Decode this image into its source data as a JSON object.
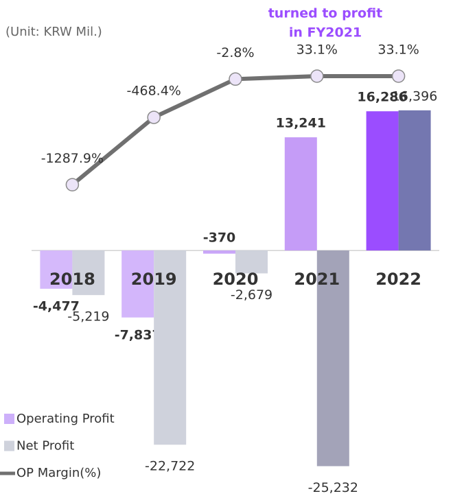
{
  "chart_data": {
    "type": "bar",
    "subtitle": "(Unit: KRW Mil.)",
    "annotation": [
      "turned to profit",
      "in FY2021"
    ],
    "categories": [
      "2018",
      "2019",
      "2020",
      "2021",
      "2022"
    ],
    "ylim": [
      -28000,
      22000
    ],
    "y2lim": [
      -5000,
      200
    ],
    "legend": "bottom-left",
    "series": [
      {
        "name": "Operating Profit",
        "color": "#cdb0fa",
        "colors": [
          "#d5b9fb",
          "#d3b6fb",
          "#c9a6f8",
          "#c59cf7",
          "#9b4dff"
        ],
        "values": [
          -4477,
          -7837,
          -370,
          13241,
          16286
        ],
        "value_labels": [
          "-4,477",
          "-7,837",
          "-370",
          "13,241",
          "16,286"
        ]
      },
      {
        "name": "Net Profit",
        "color": "#cfd2dc",
        "colors": [
          "#cfd2dc",
          "#cfd2dc",
          "#cfd2dc",
          "#a3a3b8",
          "#7477b0"
        ],
        "values": [
          -5219,
          -22722,
          -2679,
          -25232,
          16396
        ],
        "value_labels": [
          "-5,219",
          "-22,722",
          "-2,679",
          "-25,232",
          "16,396"
        ]
      },
      {
        "name": "OP Margin(%)",
        "type": "line",
        "axis": "y2",
        "color": "#707070",
        "values": [
          -1287.9,
          -468.4,
          -2.8,
          33.1,
          33.1
        ],
        "value_labels": [
          "-1287.9%",
          "-468.4%",
          "-2.8%",
          "33.1%",
          "33.1%"
        ]
      }
    ]
  }
}
